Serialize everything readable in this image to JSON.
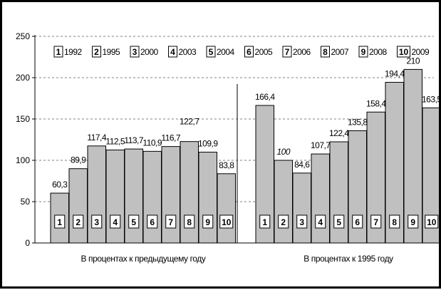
{
  "chart_data": {
    "type": "bar",
    "ylim": [
      0,
      250
    ],
    "yticks": [
      0,
      50,
      100,
      150,
      200,
      250
    ],
    "grid": "horizontal-dashed",
    "legend_placement": "top",
    "legend": [
      {
        "num": "1",
        "year": "1992"
      },
      {
        "num": "2",
        "year": "1995"
      },
      {
        "num": "3",
        "year": "2000"
      },
      {
        "num": "4",
        "year": "2003"
      },
      {
        "num": "5",
        "year": "2004"
      },
      {
        "num": "6",
        "year": "2005"
      },
      {
        "num": "7",
        "year": "2006"
      },
      {
        "num": "8",
        "year": "2007"
      },
      {
        "num": "9",
        "year": "2008"
      },
      {
        "num": "10",
        "year": "2009"
      }
    ],
    "groups": [
      {
        "label": "В процентах к предыдущему году",
        "values": [
          60.3,
          89.9,
          117.4,
          112.5,
          113.7,
          110.9,
          116.7,
          122.7,
          109.9,
          83.8
        ],
        "value_labels": [
          "60,3",
          "89,9",
          "117,4",
          "112,5",
          "113,7",
          "110,9",
          "116,7",
          "122,7",
          "109,9",
          "83,8"
        ]
      },
      {
        "label": "В процентах к 1995 году",
        "values": [
          166.4,
          100,
          84.6,
          107.7,
          122.4,
          135.8,
          158.4,
          194.4,
          210,
          163.5
        ],
        "value_labels": [
          "166,4",
          "100",
          "84,6",
          "107,7",
          "122,4",
          "135,8",
          "158,4",
          "194,4",
          "210",
          "163,5"
        ]
      }
    ],
    "bar_numbers": [
      "1",
      "2",
      "3",
      "4",
      "5",
      "6",
      "7",
      "8",
      "9",
      "10"
    ],
    "colors": {
      "bar": "#c0c0c0",
      "stroke": "#000000",
      "grid": "#808080"
    }
  }
}
